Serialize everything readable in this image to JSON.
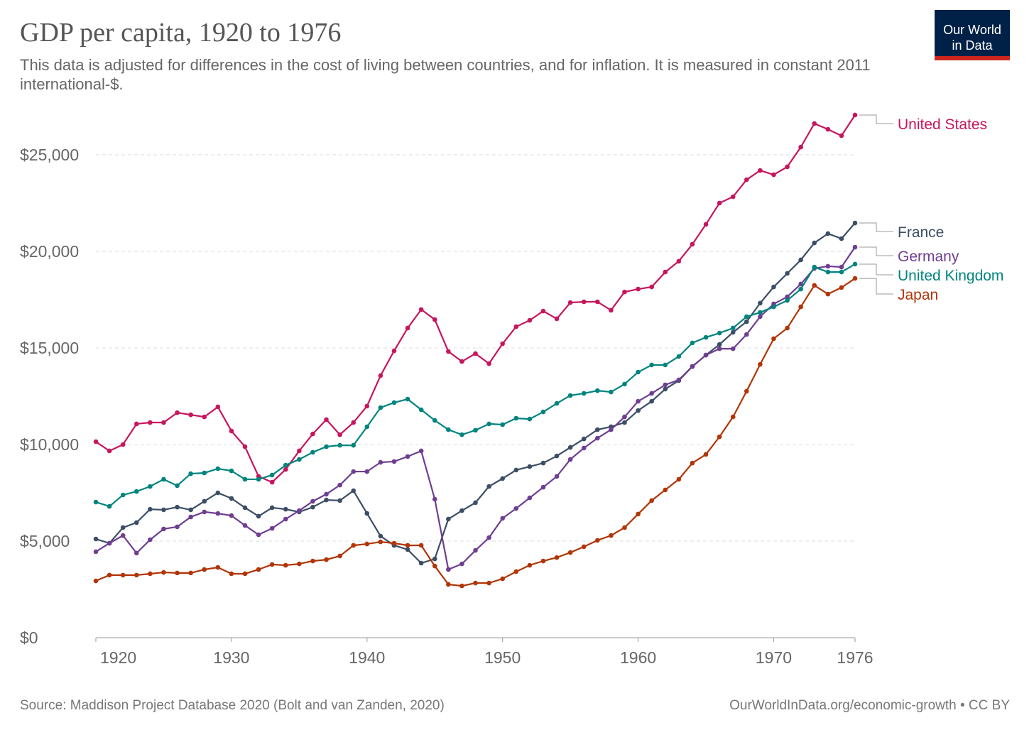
{
  "chart_data": {
    "type": "line",
    "title": "GDP per capita, 1920 to 1976",
    "subtitle": "This data is adjusted for differences in the cost of living between countries, and for inflation. It is measured in constant 2011 international-$.",
    "source": "Source: Maddison Project Database 2020 (Bolt and van Zanden, 2020)",
    "footer": "OurWorldInData.org/economic-growth • CC BY",
    "logo": [
      "Our World",
      "in Data"
    ],
    "x": [
      1920,
      1921,
      1922,
      1923,
      1924,
      1925,
      1926,
      1927,
      1928,
      1929,
      1930,
      1931,
      1932,
      1933,
      1934,
      1935,
      1936,
      1937,
      1938,
      1939,
      1940,
      1941,
      1942,
      1943,
      1944,
      1945,
      1946,
      1947,
      1948,
      1949,
      1950,
      1951,
      1952,
      1953,
      1954,
      1955,
      1956,
      1957,
      1958,
      1959,
      1960,
      1961,
      1962,
      1963,
      1964,
      1965,
      1966,
      1967,
      1968,
      1969,
      1970,
      1971,
      1972,
      1973,
      1974,
      1975,
      1976
    ],
    "xlim": [
      1920,
      1976
    ],
    "xticks": [
      1920,
      1930,
      1940,
      1950,
      1960,
      1970,
      1976
    ],
    "ylim": [
      0,
      27100
    ],
    "yticks": [
      {
        "value": 0,
        "label": "$0"
      },
      {
        "value": 5000,
        "label": "$5,000"
      },
      {
        "value": 10000,
        "label": "$10,000"
      },
      {
        "value": 15000,
        "label": "$15,000"
      },
      {
        "value": 20000,
        "label": "$20,000"
      },
      {
        "value": 25000,
        "label": "$25,000"
      }
    ],
    "grid": true,
    "series": [
      {
        "name": "United States",
        "color": "#c7155e",
        "values": [
          10150,
          9670,
          10000,
          11070,
          11140,
          11140,
          11650,
          11540,
          11430,
          11950,
          10700,
          9890,
          8350,
          8050,
          8710,
          9670,
          10550,
          11290,
          10510,
          11140,
          11990,
          13570,
          14850,
          16030,
          16990,
          16470,
          14820,
          14300,
          14710,
          14190,
          15220,
          16100,
          16430,
          16910,
          16510,
          17350,
          17390,
          17390,
          16950,
          17900,
          18050,
          18160,
          18930,
          19490,
          20370,
          21400,
          22500,
          22830,
          23710,
          24190,
          23970,
          24380,
          25400,
          26620,
          26320,
          25990,
          27060
        ]
      },
      {
        "name": "France",
        "color": "#3c4e66",
        "values": [
          5110,
          4890,
          5700,
          5960,
          6650,
          6620,
          6760,
          6620,
          7060,
          7500,
          7210,
          6730,
          6290,
          6730,
          6650,
          6510,
          6760,
          7130,
          7100,
          7610,
          6430,
          5260,
          4780,
          4560,
          3860,
          4080,
          6140,
          6580,
          6990,
          7830,
          8240,
          8680,
          8860,
          9040,
          9410,
          9850,
          10290,
          10770,
          10920,
          11140,
          11760,
          12240,
          12870,
          13310,
          14040,
          14630,
          15180,
          15810,
          16360,
          17320,
          18160,
          18860,
          19560,
          20440,
          20920,
          20660,
          21470
        ]
      },
      {
        "name": "Germany",
        "color": "#6d3e91",
        "values": [
          4450,
          4890,
          5290,
          4380,
          5070,
          5630,
          5740,
          6250,
          6510,
          6430,
          6320,
          5810,
          5330,
          5660,
          6140,
          6580,
          7060,
          7430,
          7900,
          8600,
          8600,
          9080,
          9120,
          9380,
          9670,
          7170,
          3530,
          3820,
          4520,
          5180,
          6180,
          6690,
          7240,
          7790,
          8350,
          9230,
          9820,
          10330,
          10770,
          11430,
          12240,
          12650,
          13090,
          13350,
          14040,
          14630,
          14960,
          14960,
          15700,
          16620,
          17280,
          17650,
          18310,
          19120,
          19230,
          19190,
          20220
        ]
      },
      {
        "name": "United Kingdom",
        "color": "#00847e",
        "values": [
          7020,
          6800,
          7390,
          7570,
          7830,
          8200,
          7870,
          8490,
          8530,
          8750,
          8640,
          8200,
          8200,
          8420,
          8930,
          9230,
          9600,
          9890,
          9960,
          9960,
          10920,
          11910,
          12170,
          12350,
          11800,
          11250,
          10770,
          10510,
          10740,
          11070,
          11030,
          11360,
          11320,
          11690,
          12130,
          12540,
          12650,
          12790,
          12720,
          13130,
          13750,
          14120,
          14120,
          14560,
          15260,
          15550,
          15770,
          16030,
          16620,
          16840,
          17130,
          17460,
          18050,
          19190,
          18930,
          18930,
          19340
        ]
      },
      {
        "name": "Japan",
        "color": "#b13507",
        "values": [
          2940,
          3240,
          3240,
          3240,
          3310,
          3380,
          3350,
          3350,
          3530,
          3640,
          3310,
          3310,
          3530,
          3790,
          3750,
          3820,
          3970,
          4040,
          4230,
          4780,
          4850,
          4960,
          4890,
          4780,
          4780,
          3710,
          2760,
          2680,
          2830,
          2830,
          3050,
          3420,
          3750,
          3970,
          4150,
          4410,
          4710,
          5040,
          5290,
          5700,
          6400,
          7100,
          7650,
          8200,
          9040,
          9490,
          10400,
          11430,
          12760,
          14150,
          15480,
          16030,
          17130,
          18240,
          17790,
          18130,
          18600
        ]
      }
    ]
  }
}
